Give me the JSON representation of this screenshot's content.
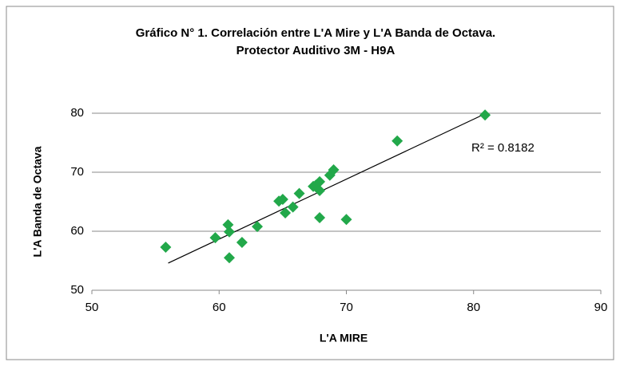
{
  "chart_data": {
    "type": "scatter",
    "title": [
      "Gráfico N° 1.  Correlación entre L'A Mire y L'A Banda de Octava.",
      "Protector Auditivo 3M - H9A"
    ],
    "x_label": "L'A MIRE",
    "y_label": "L'A Banda de Octava",
    "annotation": "R² = 0.8182",
    "x": [
      55.8,
      59.7,
      60.7,
      60.8,
      60.8,
      61.8,
      63.0,
      64.7,
      65.0,
      65.2,
      65.8,
      66.3,
      67.4,
      67.6,
      67.9,
      67.9,
      67.9,
      68.7,
      69.0,
      70.0,
      74.0,
      80.9
    ],
    "values": [
      57.3,
      58.9,
      61.1,
      59.9,
      55.5,
      58.1,
      60.8,
      65.1,
      65.4,
      63.1,
      64.1,
      66.4,
      67.6,
      67.8,
      68.4,
      66.9,
      62.3,
      69.5,
      70.4,
      62.0,
      75.3,
      79.7
    ],
    "color": "#22a84a",
    "trendline": {
      "x": [
        56,
        80.9
      ],
      "values": [
        54.6,
        79.9
      ],
      "color": "#000000"
    },
    "xlim": [
      50,
      90
    ],
    "xticks": [
      50,
      60,
      70,
      80,
      90
    ],
    "ylim": [
      50,
      80
    ],
    "yticks": [
      50,
      60,
      70,
      80
    ],
    "grid": true
  }
}
